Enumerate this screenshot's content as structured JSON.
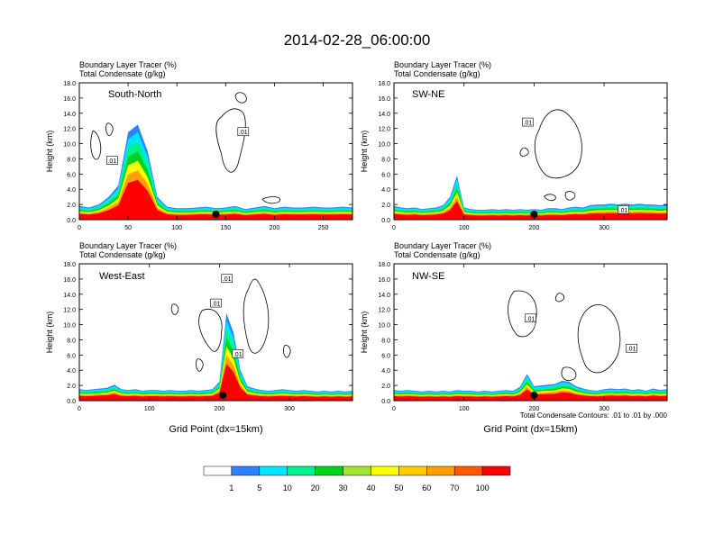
{
  "figure": {
    "title": "2014-02-28_06:00:00",
    "contour_note": "Total Condensate Contours: .01 to .01 by .000"
  },
  "colorbar": {
    "colors": [
      "#ffffff",
      "#2c82ff",
      "#00e5ff",
      "#00f08c",
      "#00d21e",
      "#a0e632",
      "#ffff00",
      "#ffcd00",
      "#ff9f00",
      "#ff5a00",
      "#ff0000"
    ],
    "labels": [
      "1",
      "5",
      "10",
      "20",
      "30",
      "40",
      "50",
      "60",
      "70",
      "100"
    ]
  },
  "chart_data": [
    {
      "type": "heatmap",
      "panel": "South-North",
      "left_title": "Boundary Layer Tracer   (%)",
      "left_subtitle": "Total Condensate   (g/kg)",
      "xlabel": "",
      "ylabel": "Height (km)",
      "xlim": [
        0,
        280
      ],
      "ylim": [
        0,
        18
      ],
      "xticks": [
        "0",
        "50",
        "100",
        "150",
        "200",
        "250"
      ],
      "yticks": [
        "0.0",
        "2.0",
        "4.0",
        "6.0",
        "8.0",
        "10.0",
        "12.0",
        "14.0",
        "16.0",
        "18.0"
      ],
      "boundary_layer_top_km": [
        1.8,
        1.6,
        2.0,
        3.0,
        4.5,
        11.5,
        12.5,
        9.0,
        3.0,
        1.7,
        1.5,
        1.5,
        1.6,
        1.7,
        1.5,
        1.6,
        1.8,
        1.4,
        1.6,
        1.8,
        1.5,
        1.7,
        1.6,
        1.6,
        1.7,
        1.6,
        1.6,
        1.7,
        1.6
      ],
      "marker_x": 140,
      "contour_labels": [
        ".01",
        ".01"
      ]
    },
    {
      "type": "heatmap",
      "panel": "SW-NE",
      "left_title": "Boundary Layer Tracer   (%)",
      "left_subtitle": "Total Condensate   (g/kg)",
      "xlabel": "",
      "ylabel": "Height (km)",
      "xlim": [
        0,
        390
      ],
      "ylim": [
        0,
        18
      ],
      "xticks": [
        "0",
        "100",
        "200",
        "300"
      ],
      "yticks": [
        "0.0",
        "2.0",
        "4.0",
        "6.0",
        "8.0",
        "10.0",
        "12.0",
        "14.0",
        "16.0",
        "18.0"
      ],
      "boundary_layer_top_km": [
        1.8,
        1.6,
        1.5,
        1.6,
        1.4,
        1.5,
        1.6,
        1.9,
        3.0,
        5.8,
        1.6,
        1.4,
        1.3,
        1.3,
        1.4,
        1.3,
        1.4,
        1.3,
        1.4,
        1.3,
        1.4,
        1.3,
        1.5,
        1.5,
        1.4,
        1.6,
        1.7,
        1.6,
        1.9,
        2.0,
        2.0,
        2.1,
        2.0,
        2.1,
        2.0,
        2.1,
        2.0,
        2.0,
        1.9,
        2.0
      ],
      "marker_x": 200,
      "contour_labels": [
        ".01",
        ".01"
      ]
    },
    {
      "type": "heatmap",
      "panel": "West-East",
      "left_title": "Boundary Layer Tracer   (%)",
      "left_subtitle": "Total Condensate   (g/kg)",
      "xlabel": "Grid Point (dx=15km)",
      "ylabel": "Height (km)",
      "xlim": [
        0,
        390
      ],
      "ylim": [
        0,
        18
      ],
      "xticks": [
        "0",
        "100",
        "200",
        "300"
      ],
      "yticks": [
        "0.0",
        "2.0",
        "4.0",
        "6.0",
        "8.0",
        "10.0",
        "12.0",
        "14.0",
        "16.0",
        "18.0"
      ],
      "boundary_layer_top_km": [
        1.5,
        1.4,
        1.5,
        1.6,
        1.7,
        2.1,
        1.5,
        1.4,
        1.5,
        1.3,
        1.4,
        1.4,
        1.3,
        1.4,
        1.3,
        1.3,
        1.4,
        1.3,
        1.4,
        1.5,
        2.5,
        11.5,
        9.0,
        4.0,
        1.9,
        1.6,
        1.4,
        1.3,
        1.4,
        1.5,
        1.4,
        1.3,
        1.4,
        1.3,
        1.2,
        1.3,
        1.2,
        1.3,
        1.2,
        1.3
      ],
      "marker_x": 205,
      "contour_labels": [
        ".01",
        ".01",
        ".01"
      ]
    },
    {
      "type": "heatmap",
      "panel": "NW-SE",
      "left_title": "Boundary Layer Tracer   (%)",
      "left_subtitle": "Total Condensate   (g/kg)",
      "xlabel": "Grid Point (dx=15km)",
      "ylabel": "Height (km)",
      "xlim": [
        0,
        390
      ],
      "ylim": [
        0,
        18
      ],
      "xticks": [
        "0",
        "100",
        "200",
        "300"
      ],
      "yticks": [
        "0.0",
        "2.0",
        "4.0",
        "6.0",
        "8.0",
        "10.0",
        "12.0",
        "14.0",
        "16.0",
        "18.0"
      ],
      "boundary_layer_top_km": [
        1.4,
        1.3,
        1.4,
        1.3,
        1.2,
        1.3,
        1.2,
        1.3,
        1.2,
        1.4,
        1.3,
        1.3,
        1.2,
        1.3,
        1.2,
        1.3,
        1.4,
        1.3,
        1.8,
        3.5,
        1.9,
        2.0,
        2.1,
        2.2,
        2.6,
        2.5,
        1.9,
        1.6,
        1.4,
        1.3,
        1.5,
        1.6,
        1.5,
        1.6,
        1.4,
        1.5,
        1.3,
        1.6,
        1.4,
        1.5
      ],
      "marker_x": 200,
      "contour_labels": [
        ".01",
        ".01"
      ]
    }
  ]
}
